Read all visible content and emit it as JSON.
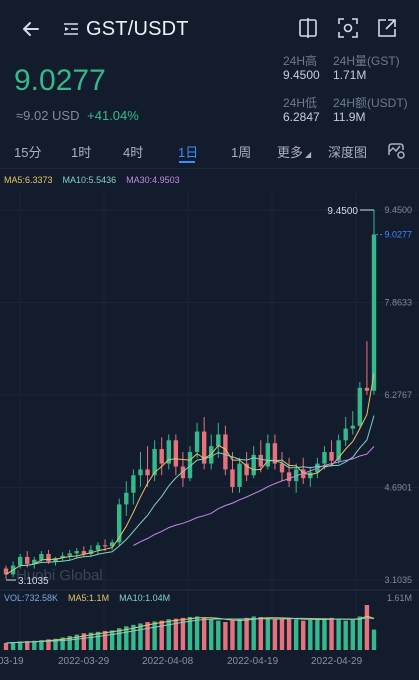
{
  "header": {
    "pair": "GST/USDT"
  },
  "price": {
    "last": "9.0277",
    "usd": "≈9.02 USD",
    "change": "+41.04%"
  },
  "stats": {
    "high_label": "24H高",
    "high_value": "9.4500",
    "vol_gst_label": "24H量(GST)",
    "vol_gst_value": "1.71M",
    "low_label": "24H低",
    "low_value": "6.2847",
    "amount_label": "24H额(USDT)",
    "amount_value": "11.9M"
  },
  "tabs": [
    {
      "label": "15分"
    },
    {
      "label": "1时"
    },
    {
      "label": "4时"
    },
    {
      "label": "1日",
      "active": true
    },
    {
      "label": "1周"
    },
    {
      "label": "更多"
    },
    {
      "label": "深度图"
    }
  ],
  "indicators": {
    "ma5": "MA5:6.3373",
    "ma10": "MA10:5.5436",
    "ma30": "MA30:4.9503"
  },
  "volume": {
    "vol": "VOL:732.58K",
    "ma5": "MA5:1.1M",
    "ma10": "MA10:1.04M",
    "max_label": "1.61M"
  },
  "watermark": "Huobi Global",
  "colors": {
    "up": "#35b88b",
    "down": "#e5737d",
    "accent": "#3f8cff",
    "ma5": "#e5c46a",
    "ma10": "#7fd3c3",
    "ma30": "#c289e6"
  },
  "chart_data": {
    "type": "candlestick",
    "y_axis_ticks": [
      "9.4500",
      "7.8633",
      "6.2767",
      "4.6901",
      "3.1035"
    ],
    "y_range": [
      3.1035,
      9.45
    ],
    "current_price_label": "9.0277",
    "current_price": 9.0277,
    "high_marker_label": "9.4500",
    "high_marker": 9.45,
    "low_marker_label": "3.1035",
    "low_marker": 3.1035,
    "x_labels": [
      "03-19",
      "2022-03-29",
      "2022-04-08",
      "2022-04-19",
      "2022-04-29"
    ],
    "ohlc": [
      [
        3.3,
        3.35,
        3.12,
        3.2
      ],
      [
        3.2,
        3.42,
        3.15,
        3.35
      ],
      [
        3.35,
        3.55,
        3.3,
        3.5
      ],
      [
        3.5,
        3.6,
        3.32,
        3.38
      ],
      [
        3.38,
        3.5,
        3.3,
        3.45
      ],
      [
        3.45,
        3.6,
        3.4,
        3.55
      ],
      [
        3.55,
        3.62,
        3.38,
        3.42
      ],
      [
        3.42,
        3.5,
        3.35,
        3.48
      ],
      [
        3.48,
        3.58,
        3.42,
        3.52
      ],
      [
        3.52,
        3.62,
        3.45,
        3.56
      ],
      [
        3.56,
        3.65,
        3.48,
        3.6
      ],
      [
        3.6,
        3.68,
        3.5,
        3.55
      ],
      [
        3.55,
        3.7,
        3.5,
        3.62
      ],
      [
        3.62,
        3.75,
        3.55,
        3.7
      ],
      [
        3.7,
        3.8,
        3.6,
        3.68
      ],
      [
        3.68,
        3.8,
        3.62,
        3.75
      ],
      [
        3.75,
        4.5,
        3.7,
        4.4
      ],
      [
        4.4,
        4.8,
        4.2,
        4.6
      ],
      [
        4.6,
        5.0,
        4.4,
        4.9
      ],
      [
        4.9,
        5.3,
        4.7,
        5.0
      ],
      [
        5.0,
        5.4,
        4.7,
        4.9
      ],
      [
        4.9,
        5.5,
        4.8,
        5.35
      ],
      [
        5.35,
        5.55,
        4.9,
        5.1
      ],
      [
        5.1,
        5.6,
        5.0,
        5.5
      ],
      [
        5.5,
        5.6,
        4.9,
        5.05
      ],
      [
        5.05,
        5.3,
        4.7,
        4.85
      ],
      [
        4.85,
        5.4,
        4.8,
        5.3
      ],
      [
        5.3,
        5.8,
        5.2,
        5.65
      ],
      [
        5.65,
        5.9,
        5.0,
        5.1
      ],
      [
        5.1,
        5.6,
        5.0,
        5.4
      ],
      [
        5.4,
        5.8,
        5.2,
        5.6
      ],
      [
        5.6,
        5.75,
        4.9,
        5.0
      ],
      [
        5.0,
        5.3,
        4.6,
        4.7
      ],
      [
        4.7,
        5.2,
        4.6,
        5.1
      ],
      [
        5.1,
        5.3,
        4.8,
        4.9
      ],
      [
        4.9,
        5.4,
        4.85,
        5.25
      ],
      [
        5.25,
        5.5,
        4.95,
        5.05
      ],
      [
        5.05,
        5.6,
        5.0,
        5.45
      ],
      [
        5.45,
        5.6,
        5.0,
        5.1
      ],
      [
        5.1,
        5.3,
        4.8,
        4.95
      ],
      [
        4.95,
        5.2,
        4.7,
        4.8
      ],
      [
        4.8,
        5.1,
        4.6,
        5.0
      ],
      [
        5.0,
        5.2,
        4.75,
        4.85
      ],
      [
        4.85,
        5.05,
        4.7,
        4.95
      ],
      [
        4.95,
        5.2,
        4.85,
        5.1
      ],
      [
        5.1,
        5.4,
        5.0,
        5.3
      ],
      [
        5.3,
        5.5,
        5.05,
        5.15
      ],
      [
        5.15,
        5.6,
        5.1,
        5.5
      ],
      [
        5.5,
        5.9,
        5.4,
        5.7
      ],
      [
        5.7,
        6.0,
        5.6,
        5.75
      ],
      [
        5.75,
        6.5,
        5.7,
        6.4
      ],
      [
        6.4,
        7.2,
        6.28,
        6.35
      ],
      [
        6.35,
        9.45,
        6.28,
        9.03
      ]
    ],
    "volume": [
      0.25,
      0.28,
      0.3,
      0.32,
      0.33,
      0.35,
      0.38,
      0.4,
      0.45,
      0.5,
      0.55,
      0.6,
      0.62,
      0.65,
      0.68,
      0.7,
      0.78,
      0.85,
      0.9,
      0.95,
      1.0,
      1.02,
      1.05,
      1.1,
      1.12,
      1.15,
      1.18,
      1.2,
      1.15,
      1.1,
      1.05,
      1.0,
      1.05,
      1.1,
      1.15,
      1.2,
      1.18,
      1.15,
      1.1,
      1.12,
      1.15,
      1.1,
      1.05,
      1.08,
      1.1,
      1.12,
      1.15,
      1.1,
      1.05,
      1.08,
      1.2,
      1.61,
      0.73
    ],
    "volume_max": 1.61
  }
}
